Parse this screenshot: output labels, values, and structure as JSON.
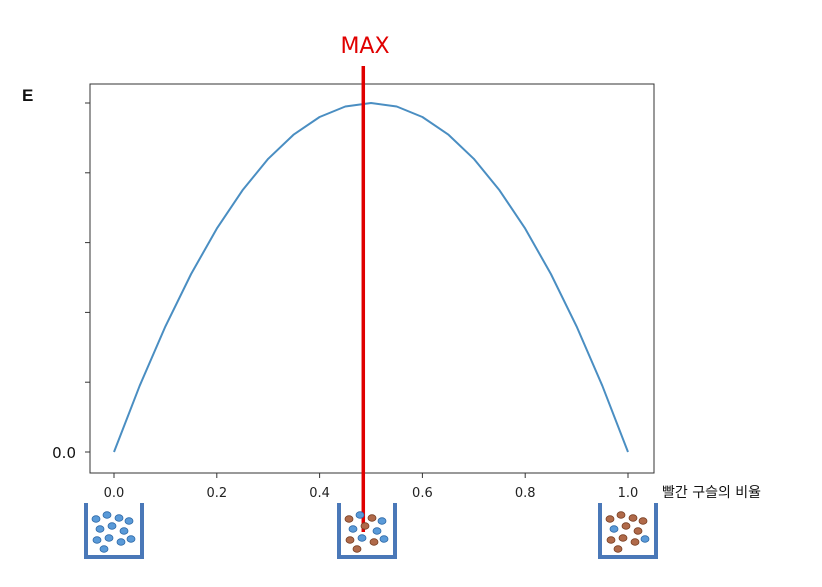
{
  "chart_data": {
    "type": "line",
    "ylabel": "E",
    "xlabel": "빨간 구슬의 비율",
    "xlim": [
      0.0,
      1.0
    ],
    "ylim": [
      0.0,
      1.0
    ],
    "xticks": [
      0.0,
      0.2,
      0.4,
      0.6,
      0.8,
      1.0
    ],
    "xtick_labels": [
      "0.0",
      "0.2",
      "0.4",
      "0.6",
      "0.8",
      "1.0"
    ],
    "ytick_labels": [
      "0.0"
    ],
    "ytick_count": 6,
    "grid": false,
    "series": [
      {
        "color": "#4a8ec2",
        "x": [
          0.0,
          0.05,
          0.1,
          0.15,
          0.2,
          0.25,
          0.3,
          0.35,
          0.4,
          0.45,
          0.5,
          0.55,
          0.6,
          0.65,
          0.7,
          0.75,
          0.8,
          0.85,
          0.9,
          0.95,
          1.0
        ],
        "y": [
          0.0,
          0.19,
          0.36,
          0.51,
          0.64,
          0.75,
          0.84,
          0.91,
          0.96,
          0.99,
          1.0,
          0.99,
          0.96,
          0.91,
          0.84,
          0.75,
          0.64,
          0.51,
          0.36,
          0.19,
          0.0
        ]
      }
    ],
    "annotations": [
      {
        "text": "MAX",
        "x": 0.485,
        "color": "#e00000"
      }
    ],
    "jars": [
      {
        "x": 0.0,
        "balls": "blue"
      },
      {
        "x": 0.5,
        "balls": "mixed"
      },
      {
        "x": 1.0,
        "balls": "red"
      }
    ]
  },
  "colors": {
    "axes": "#333333",
    "curve": "#4a8ec2",
    "marker": "#e00000",
    "jar": "#4a78b8",
    "blue_ball": "#5a9ad8",
    "red_ball": "#b06a4a"
  }
}
